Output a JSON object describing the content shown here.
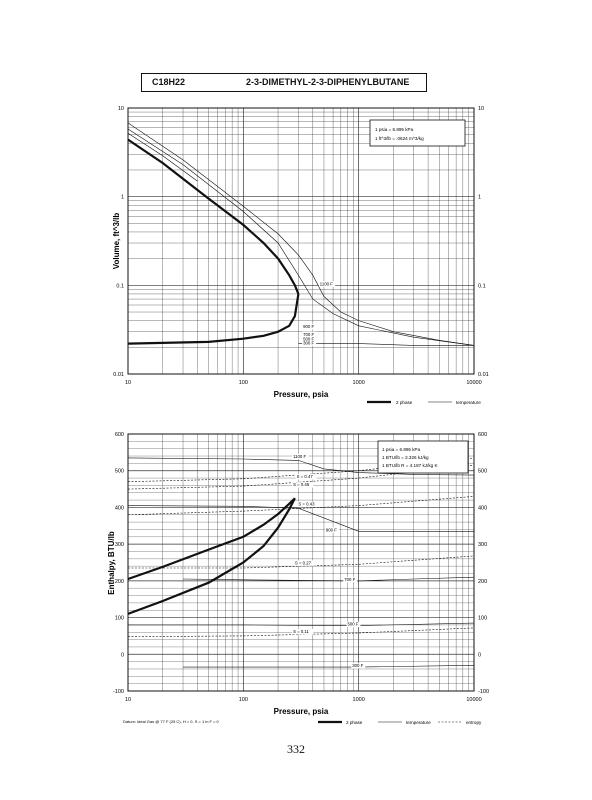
{
  "header": {
    "formula": "C18H22",
    "compound": "2-3-DIMETHYL-2-3-DIPHENYLBUTANE"
  },
  "page_number": "332",
  "chart_data": [
    {
      "type": "line",
      "ylabel": "Volume, ft^3/lb",
      "xlabel": "Pressure, psia",
      "xscale": "log",
      "yscale": "log",
      "xlim": [
        10,
        10000
      ],
      "ylim": [
        0.01,
        10
      ],
      "xticks": [
        "10",
        "100",
        "1000",
        "10000"
      ],
      "yticks": [
        "0.01",
        "0.1",
        "1",
        "10"
      ],
      "grid": true,
      "legend": [
        "2 phase",
        "temperature"
      ],
      "legend_placement": "bottom-right",
      "conversion_notes": [
        "1 psia = 6.895 kPa",
        "1 ft^3/lb = .0624 m^3/kg"
      ],
      "curve_labels": [
        "1100 F",
        "900 F",
        "700 F",
        "500 F",
        "300 F"
      ],
      "two_phase": [
        {
          "name": "saturated vapor",
          "x": [
            10,
            20,
            50,
            100,
            150,
            200,
            250,
            280,
            300
          ],
          "y": [
            4.4,
            2.4,
            0.95,
            0.48,
            0.3,
            0.2,
            0.13,
            0.1,
            0.08
          ]
        },
        {
          "name": "saturated liquid",
          "x": [
            10,
            50,
            100,
            150,
            200,
            250,
            280,
            300
          ],
          "y": [
            0.022,
            0.023,
            0.025,
            0.027,
            0.03,
            0.035,
            0.045,
            0.08
          ]
        }
      ],
      "isotherms": [
        {
          "name": "1100 F",
          "x": [
            10,
            30,
            100,
            200,
            300,
            400,
            500,
            700,
            1000,
            2000,
            5000,
            10000
          ],
          "y": [
            6.8,
            2.6,
            0.78,
            0.38,
            0.22,
            0.13,
            0.075,
            0.05,
            0.04,
            0.03,
            0.024,
            0.021
          ]
        },
        {
          "name": "900 F",
          "x": [
            10,
            30,
            100,
            200,
            300,
            400,
            600,
            1000,
            3000,
            10000
          ],
          "y": [
            5.8,
            2.3,
            0.68,
            0.3,
            0.13,
            0.07,
            0.048,
            0.035,
            0.026,
            0.021
          ]
        },
        {
          "name": "700 F",
          "x": [
            10,
            20,
            40
          ],
          "y": [
            5.2,
            2.9,
            1.5
          ]
        },
        {
          "name": "300 F",
          "x": [
            300,
            1000,
            3000,
            10000
          ],
          "y": [
            0.022,
            0.022,
            0.021,
            0.021
          ]
        }
      ]
    },
    {
      "type": "line",
      "ylabel": "Enthalpy, BTU/lb",
      "xlabel": "Pressure, psia",
      "xscale": "log",
      "xlim": [
        10,
        10000
      ],
      "ylim": [
        -100,
        600
      ],
      "xticks": [
        "10",
        "100",
        "1000",
        "10000"
      ],
      "yticks": [
        "-100",
        "0",
        "100",
        "200",
        "300",
        "400",
        "500",
        "600"
      ],
      "grid": true,
      "legend": [
        "2 phase",
        "temperature",
        "entropy"
      ],
      "legend_placement": "bottom-right",
      "conversion_notes": [
        "1 psia = 6.895 kPa",
        "1 BTU/lb = 2.326 kJ/kg",
        "1 BTU/lb R = 4.187 kJ/kg K"
      ],
      "footnote": "Datum: Ideal Gas @ 77 F (25 C), H = 0, S = 1 in F = 0",
      "curve_labels": [
        "1100 F",
        "900 F",
        "700 F",
        "500 F",
        "300 F",
        "S = 0.47",
        "S = 0.45",
        "S = 0.43",
        "S = 0.27",
        "S = 0.11"
      ],
      "two_phase": [
        {
          "name": "saturated vapor",
          "x": [
            10,
            20,
            50,
            100,
            150,
            200,
            250,
            280
          ],
          "y": [
            205,
            238,
            285,
            320,
            353,
            382,
            410,
            425
          ]
        },
        {
          "name": "saturated liquid",
          "x": [
            10,
            20,
            50,
            100,
            150,
            200,
            250,
            280
          ],
          "y": [
            110,
            145,
            195,
            250,
            295,
            345,
            395,
            425
          ]
        }
      ],
      "isotherms": [
        {
          "name": "1100 F",
          "x": [
            10,
            100,
            300,
            500,
            1000,
            3000,
            10000
          ],
          "y": [
            535,
            532,
            528,
            505,
            495,
            490,
            488
          ]
        },
        {
          "name": "900 F",
          "x": [
            10,
            100,
            300,
            1000,
            10000
          ],
          "y": [
            405,
            403,
            398,
            335,
            335
          ]
        },
        {
          "name": "700 F",
          "x": [
            30,
            100,
            1000,
            3000,
            10000
          ],
          "y": [
            205,
            203,
            200,
            205,
            210
          ]
        },
        {
          "name": "500 F",
          "x": [
            10,
            100,
            500,
            1000,
            10000
          ],
          "y": [
            80,
            80,
            78,
            78,
            85
          ]
        },
        {
          "name": "300 F",
          "x": [
            30,
            100,
            1000,
            10000
          ],
          "y": [
            -35,
            -35,
            -35,
            -30
          ]
        }
      ],
      "entropy_lines": [
        {
          "name": "S = 0.47",
          "x": [
            10,
            100,
            1000,
            10000
          ],
          "y": [
            470,
            478,
            500,
            535
          ]
        },
        {
          "name": "S = 0.45",
          "x": [
            10,
            100,
            1000,
            10000
          ],
          "y": [
            450,
            458,
            480,
            515
          ]
        },
        {
          "name": "S = 0.43",
          "x": [
            10,
            100,
            1000,
            10000
          ],
          "y": [
            380,
            390,
            405,
            430
          ]
        },
        {
          "name": "S = 0.27",
          "x": [
            10,
            100,
            1000,
            10000
          ],
          "y": [
            235,
            235,
            245,
            268
          ]
        },
        {
          "name": "S = 0.11",
          "x": [
            10,
            100,
            1000,
            10000
          ],
          "y": [
            48,
            50,
            58,
            72
          ]
        }
      ]
    }
  ]
}
